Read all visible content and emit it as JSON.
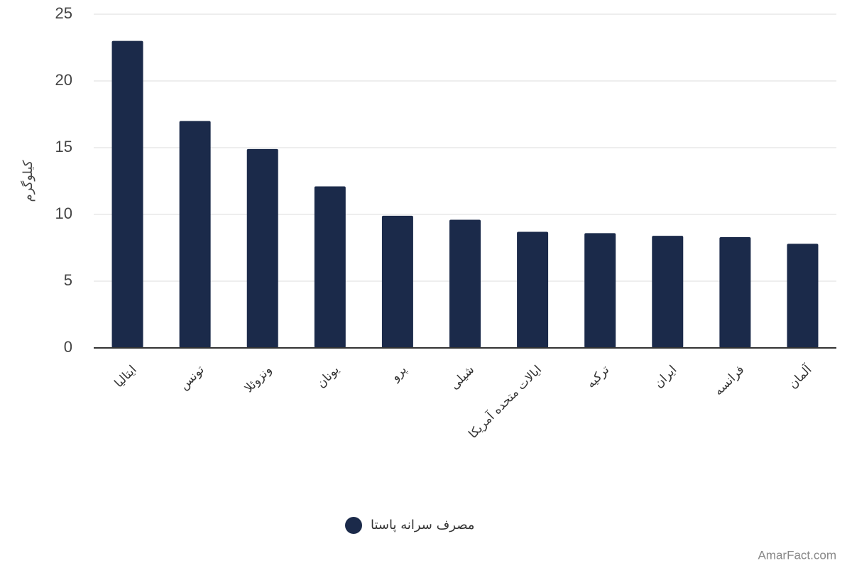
{
  "chart_data": {
    "type": "bar",
    "y_label": "کیلوگرم",
    "categories": [
      "ایتالیا",
      "تونس",
      "ونزوئلا",
      "یونان",
      "پرو",
      "شیلی",
      "ایالات متحده آمریکا",
      "ترکیه",
      "ایران",
      "فرانسه",
      "آلمان"
    ],
    "series": [
      {
        "name": "مصرف سرانه پاستا",
        "color": "#1b2a4a",
        "values": [
          23,
          17,
          14.9,
          12.1,
          9.9,
          9.6,
          8.7,
          8.6,
          8.4,
          8.3,
          7.8
        ]
      }
    ],
    "ylim": [
      0,
      25
    ],
    "yticks": [
      0,
      5,
      10,
      15,
      20,
      25
    ],
    "grid": true,
    "legend": "bottom",
    "watermark": "AmarFact.com"
  }
}
